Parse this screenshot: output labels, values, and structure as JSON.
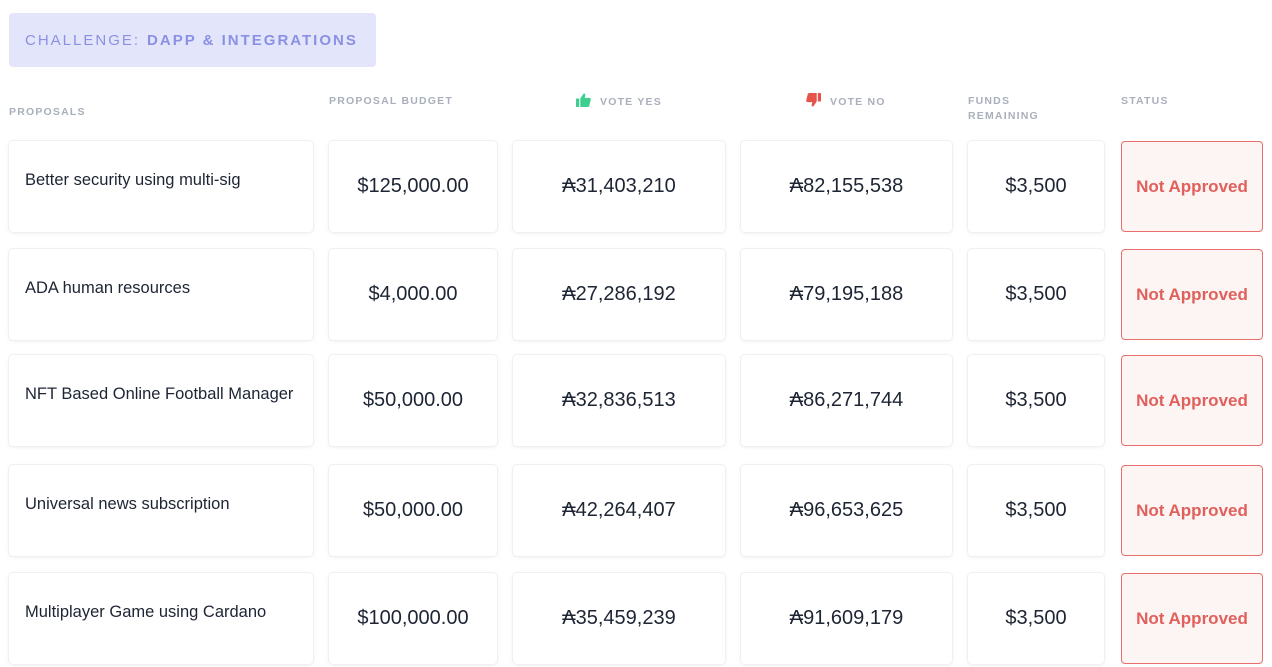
{
  "challenge": {
    "prefix": "CHALLENGE:",
    "name": "DAPP & INTEGRATIONS"
  },
  "columns": {
    "proposals": "PROPOSALS",
    "budget": "PROPOSAL BUDGET",
    "vote_yes": "VOTE YES",
    "vote_no": "VOTE NO",
    "funds_line1": "FUNDS",
    "funds_line2": "REMAINING",
    "status": "STATUS"
  },
  "icons": {
    "vote_yes": "thumbs-up-icon",
    "vote_no": "thumbs-down-icon"
  },
  "colors": {
    "accent": "#8b90e3",
    "chip_bg": "#e3e5fb",
    "yes_green": "#3ecf8e",
    "no_red": "#e5534b",
    "status_red": "#e0605c"
  },
  "proposals": [
    {
      "title": "Better security using multi-sig",
      "budget": "$125,000.00",
      "vote_yes": "₳31,403,210",
      "vote_no": "₳82,155,538",
      "funds_remaining": "$3,500",
      "status": "Not Approved"
    },
    {
      "title": "ADA human resources",
      "budget": "$4,000.00",
      "vote_yes": "₳27,286,192",
      "vote_no": "₳79,195,188",
      "funds_remaining": "$3,500",
      "status": "Not Approved"
    },
    {
      "title": "NFT Based Online Football Manager",
      "budget": "$50,000.00",
      "vote_yes": "₳32,836,513",
      "vote_no": "₳86,271,744",
      "funds_remaining": "$3,500",
      "status": "Not Approved"
    },
    {
      "title": "Universal news subscription",
      "budget": "$50,000.00",
      "vote_yes": "₳42,264,407",
      "vote_no": "₳96,653,625",
      "funds_remaining": "$3,500",
      "status": "Not Approved"
    },
    {
      "title": "Multiplayer Game using Cardano",
      "budget": "$100,000.00",
      "vote_yes": "₳35,459,239",
      "vote_no": "₳91,609,179",
      "funds_remaining": "$3,500",
      "status": "Not Approved"
    }
  ]
}
